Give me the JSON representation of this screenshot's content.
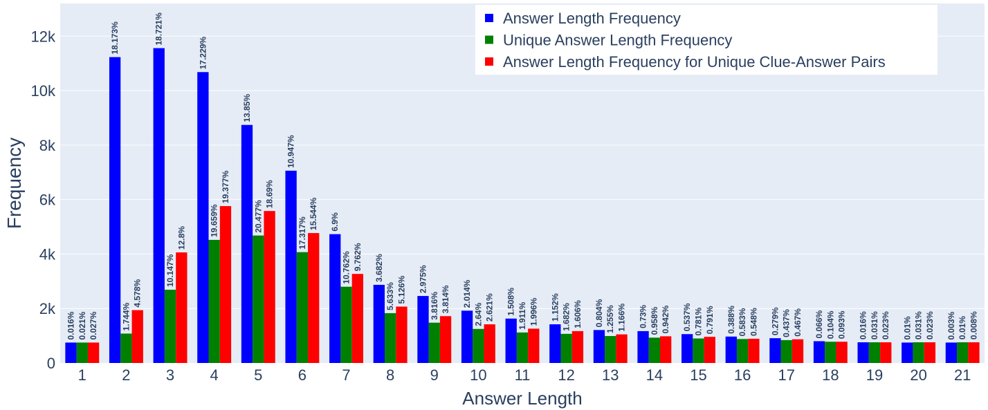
{
  "chart_data": {
    "type": "bar",
    "xlabel": "Answer Length",
    "ylabel": "Frequency",
    "ylim": [
      0,
      13200
    ],
    "y_ticks": [
      {
        "value": 0,
        "label": "0"
      },
      {
        "value": 2000,
        "label": "2k"
      },
      {
        "value": 4000,
        "label": "4k"
      },
      {
        "value": 6000,
        "label": "6k"
      },
      {
        "value": 8000,
        "label": "8k"
      },
      {
        "value": 10000,
        "label": "10k"
      },
      {
        "value": 12000,
        "label": "12k"
      }
    ],
    "grid": true,
    "legend_position": "top-right",
    "background": "#e5ecf6",
    "categories": [
      "1",
      "2",
      "3",
      "4",
      "5",
      "6",
      "7",
      "8",
      "9",
      "10",
      "11",
      "12",
      "13",
      "14",
      "15",
      "16",
      "17",
      "18",
      "19",
      "20",
      "21"
    ],
    "series": [
      {
        "name": "Answer Length Frequency",
        "color": "#0000ff",
        "values": [
          750,
          11230,
          11560,
          10680,
          8740,
          7060,
          4730,
          2870,
          2460,
          1920,
          1630,
          1420,
          1210,
          1170,
          1060,
          970,
          910,
          800,
          760,
          750,
          750
        ],
        "labels": [
          "0.016%",
          "18.173%",
          "18.721%",
          "17.229%",
          "13.85%",
          "10.947%",
          "6.9%",
          "3.682%",
          "2.975%",
          "2.014%",
          "1.508%",
          "1.152%",
          "0.804%",
          "0.73%",
          "0.537%",
          "0.388%",
          "0.279%",
          "0.066%",
          "0.016%",
          "0.01%",
          "0.003%"
        ]
      },
      {
        "name": "Unique Answer Length Frequency",
        "color": "#008000",
        "values": [
          750,
          1080,
          2690,
          4520,
          4680,
          4070,
          2800,
          1830,
          1480,
          1250,
          1120,
          1070,
          990,
          930,
          900,
          880,
          840,
          780,
          760,
          760,
          760
        ],
        "labels": [
          "0.021%",
          "1.744%",
          "10.147%",
          "19.659%",
          "20.477%",
          "17.317%",
          "10.762%",
          "5.633%",
          "3.816%",
          "2.64%",
          "1.911%",
          "1.682%",
          "1.255%",
          "0.958%",
          "0.781%",
          "0.583%",
          "0.437%",
          "0.104%",
          "0.031%",
          "0.031%",
          "0.01%"
        ]
      },
      {
        "name": "Answer Length Frequency for Unique Clue-Answer Pairs",
        "color": "#ff0000",
        "values": [
          750,
          1940,
          4060,
          5760,
          5580,
          4770,
          3270,
          2070,
          1720,
          1420,
          1260,
          1170,
          1050,
          980,
          960,
          890,
          870,
          780,
          760,
          760,
          760
        ],
        "labels": [
          "0.027%",
          "4.578%",
          "12.8%",
          "19.377%",
          "18.69%",
          "15.544%",
          "9.762%",
          "5.126%",
          "3.814%",
          "2.621%",
          "1.996%",
          "1.606%",
          "1.166%",
          "0.942%",
          "0.791%",
          "0.548%",
          "0.467%",
          "0.093%",
          "0.023%",
          "0.023%",
          "0.008%"
        ]
      }
    ]
  }
}
